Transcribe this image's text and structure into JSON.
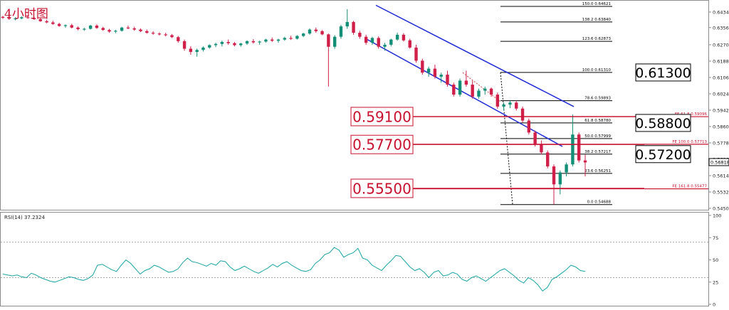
{
  "title": "4小时图",
  "chart_data": {
    "type": "candlestick",
    "title": "4小时图",
    "y_axis_ticks": [
      "0.64340",
      "0.63560",
      "0.62700",
      "0.61880",
      "0.61060",
      "0.60240",
      "0.59420",
      "0.58600",
      "0.57780",
      "0.56960",
      "0.56140",
      "0.55320",
      "0.54500"
    ],
    "ylim": [
      0.545,
      0.648
    ],
    "last_price": "0.56818",
    "fib_levels": [
      {
        "ratio": "150.0",
        "price": 0.64621,
        "label": "150.0  0.64621"
      },
      {
        "ratio": "138.2",
        "price": 0.6384,
        "label": "138.2  0.63840"
      },
      {
        "ratio": "123.6",
        "price": 0.62873,
        "label": "123.6  0.62873"
      },
      {
        "ratio": "100.0",
        "price": 0.6131,
        "label": "100.0  0.61310"
      },
      {
        "ratio": "78.6",
        "price": 0.59893,
        "label": "78.6  0.59893"
      },
      {
        "ratio": "61.8",
        "price": 0.5878,
        "label": "61.8  0.58780"
      },
      {
        "ratio": "50.0",
        "price": 0.57999,
        "label": "50.0  0.57999"
      },
      {
        "ratio": "38.2",
        "price": 0.57217,
        "label": "38.2  0.57217"
      },
      {
        "ratio": "23.6",
        "price": 0.56251,
        "label": "23.6  0.56251"
      },
      {
        "ratio": "0.0",
        "price": 0.54688,
        "label": "0.0  0.54688"
      }
    ],
    "fe_levels": [
      {
        "price": 0.59096,
        "label": "FE 61.8  0.59096"
      },
      {
        "price": 0.57713,
        "label": "FE 100.0  0.57713"
      },
      {
        "price": 0.55477,
        "label": "FE 161.8  0.55477"
      }
    ],
    "callouts_red": [
      {
        "text": "0.59100",
        "price": 0.591
      },
      {
        "text": "0.57700",
        "price": 0.577
      },
      {
        "text": "0.55500",
        "price": 0.555
      }
    ],
    "callouts_black": [
      {
        "text": "0.61300",
        "price": 0.6131
      },
      {
        "text": "0.58800",
        "price": 0.5878
      },
      {
        "text": "0.57200",
        "price": 0.57217
      }
    ],
    "channel": {
      "upper": [
        [
          0.6468,
          0.596
        ]
      ],
      "lower": [
        [
          0.63,
          0.576
        ]
      ]
    },
    "candles": [
      [
        0.641,
        0.6415,
        0.64,
        0.6405
      ],
      [
        0.6405,
        0.641,
        0.6395,
        0.64
      ],
      [
        0.64,
        0.6408,
        0.6392,
        0.6402
      ],
      [
        0.6402,
        0.6412,
        0.6398,
        0.6408
      ],
      [
        0.6408,
        0.6418,
        0.64,
        0.6404
      ],
      [
        0.6404,
        0.641,
        0.6394,
        0.6398
      ],
      [
        0.6398,
        0.6405,
        0.6385,
        0.6388
      ],
      [
        0.6388,
        0.6395,
        0.6378,
        0.6382
      ],
      [
        0.6382,
        0.639,
        0.637,
        0.6374
      ],
      [
        0.6374,
        0.638,
        0.636,
        0.6364
      ],
      [
        0.6364,
        0.6372,
        0.6355,
        0.6368
      ],
      [
        0.6368,
        0.6375,
        0.6352,
        0.6356
      ],
      [
        0.6356,
        0.6362,
        0.6342,
        0.6348
      ],
      [
        0.6348,
        0.6355,
        0.634,
        0.635
      ],
      [
        0.635,
        0.637,
        0.6346,
        0.6366
      ],
      [
        0.6366,
        0.6372,
        0.635,
        0.6354
      ],
      [
        0.6354,
        0.636,
        0.634,
        0.6344
      ],
      [
        0.6344,
        0.635,
        0.633,
        0.6336
      ],
      [
        0.6336,
        0.6345,
        0.6328,
        0.634
      ],
      [
        0.634,
        0.636,
        0.6336,
        0.6356
      ],
      [
        0.6356,
        0.6366,
        0.6348,
        0.6352
      ],
      [
        0.6352,
        0.636,
        0.634,
        0.6346
      ],
      [
        0.6346,
        0.6352,
        0.6334,
        0.6338
      ],
      [
        0.6338,
        0.6346,
        0.6325,
        0.633
      ],
      [
        0.633,
        0.6338,
        0.632,
        0.6326
      ],
      [
        0.6326,
        0.6332,
        0.6316,
        0.6322
      ],
      [
        0.6322,
        0.633,
        0.6312,
        0.6318
      ],
      [
        0.6318,
        0.6324,
        0.6304,
        0.6308
      ],
      [
        0.6308,
        0.6314,
        0.628,
        0.6288
      ],
      [
        0.6288,
        0.6296,
        0.624,
        0.625
      ],
      [
        0.625,
        0.6262,
        0.622,
        0.6234
      ],
      [
        0.6234,
        0.625,
        0.621,
        0.6244
      ],
      [
        0.6244,
        0.6262,
        0.6236,
        0.6256
      ],
      [
        0.6256,
        0.6272,
        0.625,
        0.6268
      ],
      [
        0.6268,
        0.628,
        0.6258,
        0.6274
      ],
      [
        0.6274,
        0.629,
        0.6262,
        0.6284
      ],
      [
        0.6284,
        0.6296,
        0.627,
        0.6278
      ],
      [
        0.6278,
        0.6284,
        0.6262,
        0.6268
      ],
      [
        0.6268,
        0.628,
        0.626,
        0.6276
      ],
      [
        0.6276,
        0.6292,
        0.627,
        0.6288
      ],
      [
        0.6288,
        0.6298,
        0.6276,
        0.6282
      ],
      [
        0.6282,
        0.629,
        0.627,
        0.6286
      ],
      [
        0.6286,
        0.63,
        0.628,
        0.6296
      ],
      [
        0.6296,
        0.6306,
        0.6284,
        0.629
      ],
      [
        0.629,
        0.63,
        0.628,
        0.6296
      ],
      [
        0.6296,
        0.631,
        0.629,
        0.6304
      ],
      [
        0.6304,
        0.6315,
        0.6294,
        0.63
      ],
      [
        0.63,
        0.6318,
        0.6296,
        0.6314
      ],
      [
        0.6314,
        0.633,
        0.6308,
        0.6326
      ],
      [
        0.6326,
        0.6352,
        0.632,
        0.6346
      ],
      [
        0.6346,
        0.6356,
        0.633,
        0.6338
      ],
      [
        0.6338,
        0.6344,
        0.6318,
        0.6322
      ],
      [
        0.6322,
        0.6326,
        0.606,
        0.626
      ],
      [
        0.626,
        0.6318,
        0.625,
        0.631
      ],
      [
        0.631,
        0.637,
        0.63,
        0.6362
      ],
      [
        0.6362,
        0.6448,
        0.635,
        0.6384
      ],
      [
        0.6384,
        0.639,
        0.632,
        0.633
      ],
      [
        0.633,
        0.634,
        0.63,
        0.631
      ],
      [
        0.631,
        0.632,
        0.627,
        0.628
      ],
      [
        0.628,
        0.631,
        0.627,
        0.6304
      ],
      [
        0.6304,
        0.6312,
        0.625,
        0.626
      ],
      [
        0.626,
        0.628,
        0.624,
        0.627
      ],
      [
        0.627,
        0.63,
        0.6262,
        0.6296
      ],
      [
        0.6296,
        0.633,
        0.629,
        0.632
      ],
      [
        0.632,
        0.6328,
        0.6286,
        0.6292
      ],
      [
        0.6292,
        0.63,
        0.625,
        0.6256
      ],
      [
        0.6256,
        0.627,
        0.618,
        0.619
      ],
      [
        0.619,
        0.62,
        0.612,
        0.613
      ],
      [
        0.613,
        0.616,
        0.611,
        0.615
      ],
      [
        0.615,
        0.617,
        0.61,
        0.611
      ],
      [
        0.611,
        0.613,
        0.608,
        0.612
      ],
      [
        0.612,
        0.614,
        0.606,
        0.607
      ],
      [
        0.607,
        0.608,
        0.601,
        0.602
      ],
      [
        0.602,
        0.61,
        0.601,
        0.609
      ],
      [
        0.609,
        0.614,
        0.606,
        0.607
      ],
      [
        0.607,
        0.609,
        0.6,
        0.601
      ],
      [
        0.601,
        0.605,
        0.6,
        0.604
      ],
      [
        0.604,
        0.606,
        0.602,
        0.605
      ],
      [
        0.605,
        0.6056,
        0.601,
        0.602
      ],
      [
        0.602,
        0.603,
        0.595,
        0.596
      ],
      [
        0.596,
        0.598,
        0.594,
        0.597
      ],
      [
        0.597,
        0.599,
        0.5952,
        0.598
      ],
      [
        0.598,
        0.599,
        0.594,
        0.595
      ],
      [
        0.595,
        0.596,
        0.588,
        0.589
      ],
      [
        0.589,
        0.59,
        0.582,
        0.583
      ],
      [
        0.583,
        0.584,
        0.576,
        0.577
      ],
      [
        0.577,
        0.579,
        0.572,
        0.573
      ],
      [
        0.573,
        0.574,
        0.565,
        0.566
      ],
      [
        0.566,
        0.567,
        0.547,
        0.557
      ],
      [
        0.557,
        0.564,
        0.552,
        0.563
      ],
      [
        0.563,
        0.568,
        0.561,
        0.567
      ],
      [
        0.567,
        0.592,
        0.566,
        0.582
      ],
      [
        0.582,
        0.583,
        0.568,
        0.569
      ],
      [
        0.569,
        0.572,
        0.561,
        0.568
      ]
    ],
    "rsi": {
      "label": "RSI(14) 37.2324",
      "ticks": [
        "100",
        "75",
        "50",
        "25",
        "0"
      ],
      "levels": [
        70,
        30
      ],
      "values": [
        34,
        33,
        32,
        33,
        31,
        30,
        35,
        33,
        30,
        28,
        26,
        25,
        27,
        29,
        31,
        30,
        28,
        27,
        29,
        33,
        44,
        45,
        42,
        39,
        37,
        44,
        50,
        46,
        40,
        34,
        38,
        40,
        44,
        42,
        39,
        36,
        37,
        40,
        47,
        52,
        48,
        47,
        45,
        43,
        46,
        44,
        49,
        48,
        42,
        38,
        40,
        43,
        40,
        37,
        35,
        38,
        41,
        45,
        42,
        46,
        48,
        44,
        41,
        38,
        37,
        39,
        46,
        50,
        56,
        58,
        64,
        61,
        53,
        56,
        58,
        63,
        52,
        50,
        44,
        41,
        38,
        44,
        49,
        55,
        54,
        48,
        42,
        38,
        40,
        36,
        30,
        36,
        38,
        32,
        33,
        36,
        34,
        28,
        26,
        30,
        32,
        29,
        26,
        30,
        34,
        38,
        40,
        36,
        32,
        27,
        24,
        30,
        27,
        22,
        15,
        19,
        28,
        31,
        35,
        39,
        44,
        42,
        38,
        37
      ]
    }
  }
}
